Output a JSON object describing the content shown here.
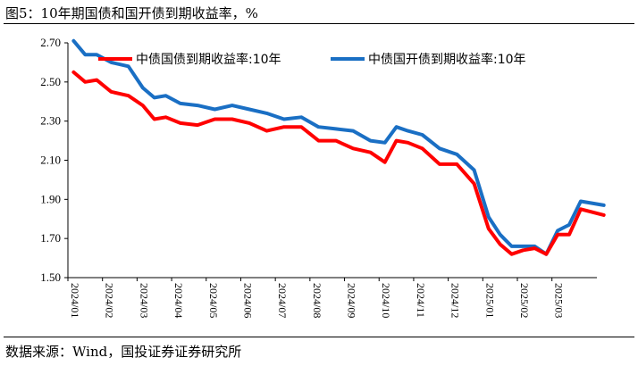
{
  "header": {
    "title": "图5：10年期国债和国开债到期收益率，%"
  },
  "footer": {
    "source": "数据来源：Wind，国投证券证券研究所"
  },
  "colors": {
    "series_1": "#ff0000",
    "series_2": "#1a6fc4",
    "axis": "#000000"
  },
  "chart_data": {
    "type": "line",
    "title": "",
    "xlabel": "",
    "ylabel": "",
    "ylim": [
      1.5,
      2.7
    ],
    "yticks": [
      "1.50",
      "1.70",
      "1.90",
      "2.10",
      "2.30",
      "2.50",
      "2.70"
    ],
    "x_tick_labels": [
      "2024/01",
      "2024/02",
      "2024/03",
      "2024/04",
      "2024/05",
      "2024/06",
      "2024/07",
      "2024/08",
      "2024/09",
      "2024/10",
      "2024/11",
      "2024/12",
      "2025/01",
      "2025/02",
      "2025/03"
    ],
    "x": [
      "2024/01",
      "2024/01",
      "2024/01",
      "2024/02",
      "2024/02",
      "2024/03",
      "2024/03",
      "2024/03",
      "2024/04",
      "2024/04",
      "2024/05",
      "2024/05",
      "2024/06",
      "2024/06",
      "2024/07",
      "2024/07",
      "2024/08",
      "2024/08",
      "2024/09",
      "2024/09",
      "2024/10",
      "2024/10",
      "2024/10",
      "2024/11",
      "2024/11",
      "2024/12",
      "2024/12",
      "2025/01",
      "2025/01",
      "2025/01",
      "2025/02",
      "2025/02",
      "2025/02",
      "2025/03",
      "2025/03",
      "2025/03",
      "2025/04"
    ],
    "grid": false,
    "legend_position": "top",
    "series": [
      {
        "name": "中债国债到期收益率:10年",
        "color": "#ff0000",
        "values": [
          2.55,
          2.5,
          2.51,
          2.45,
          2.43,
          2.38,
          2.31,
          2.32,
          2.29,
          2.28,
          2.31,
          2.31,
          2.29,
          2.25,
          2.27,
          2.27,
          2.2,
          2.2,
          2.16,
          2.14,
          2.09,
          2.2,
          2.19,
          2.16,
          2.08,
          2.08,
          1.98,
          1.75,
          1.67,
          1.62,
          1.64,
          1.65,
          1.62,
          1.72,
          1.72,
          1.85,
          1.82
        ]
      },
      {
        "name": "中债国开债到期收益率:10年",
        "color": "#1a6fc4",
        "values": [
          2.71,
          2.64,
          2.64,
          2.6,
          2.58,
          2.47,
          2.42,
          2.43,
          2.39,
          2.38,
          2.36,
          2.38,
          2.36,
          2.34,
          2.31,
          2.32,
          2.27,
          2.26,
          2.25,
          2.2,
          2.19,
          2.27,
          2.25,
          2.23,
          2.16,
          2.13,
          2.05,
          1.81,
          1.72,
          1.66,
          1.66,
          1.66,
          1.62,
          1.74,
          1.77,
          1.89,
          1.87
        ]
      }
    ]
  }
}
